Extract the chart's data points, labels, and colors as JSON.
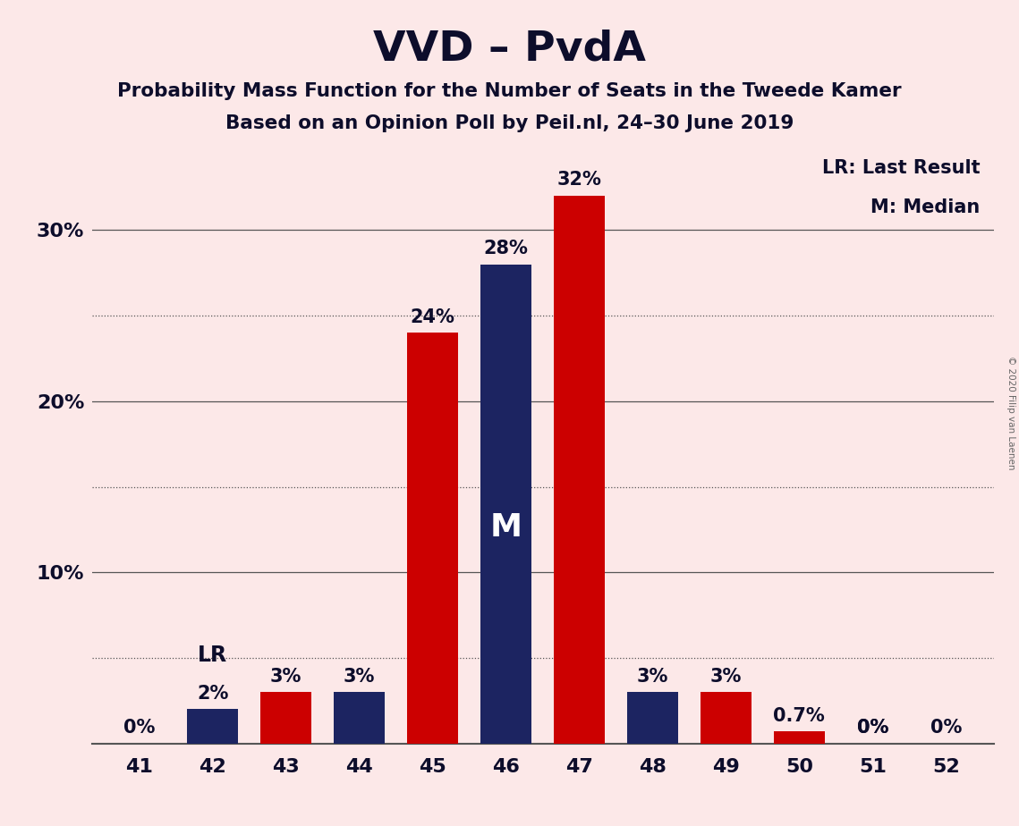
{
  "title": "VVD – PvdA",
  "subtitle1": "Probability Mass Function for the Number of Seats in the Tweede Kamer",
  "subtitle2": "Based on an Opinion Poll by Peil.nl, 24–30 June 2019",
  "copyright": "© 2020 Filip van Laenen",
  "legend_line1": "LR: Last Result",
  "legend_line2": "M: Median",
  "seats": [
    41,
    42,
    43,
    44,
    45,
    46,
    47,
    48,
    49,
    50,
    51,
    52
  ],
  "blue_values": [
    0.0,
    2.0,
    0.0,
    3.0,
    0.0,
    28.0,
    0.0,
    3.0,
    0.0,
    0.0,
    0.0,
    0.0
  ],
  "red_values": [
    0.0,
    0.0,
    3.0,
    0.0,
    24.0,
    0.0,
    32.0,
    0.0,
    3.0,
    0.7,
    0.0,
    0.0
  ],
  "blue_labels": [
    "",
    "2%",
    "",
    "3%",
    "",
    "28%",
    "",
    "3%",
    "",
    "",
    "0%",
    ""
  ],
  "red_labels": [
    "0%",
    "",
    "3%",
    "",
    "24%",
    "",
    "32%",
    "",
    "3%",
    "0.7%",
    "0%",
    "0%"
  ],
  "show_blue_label": [
    false,
    true,
    false,
    true,
    false,
    true,
    false,
    true,
    false,
    false,
    true,
    false
  ],
  "show_red_label": [
    true,
    false,
    true,
    false,
    true,
    false,
    true,
    false,
    true,
    true,
    true,
    true
  ],
  "lr_seat_idx": 1,
  "median_seat_idx": 5,
  "blue_color": "#1c2461",
  "red_color": "#cc0000",
  "bg_color": "#fce8e8",
  "title_color": "#0d0d2b",
  "grid_color": "#555555",
  "ylim": [
    0,
    35
  ],
  "yticks": [
    0,
    10,
    20,
    30
  ],
  "ytick_labels": [
    "",
    "10%",
    "20%",
    "30%"
  ]
}
